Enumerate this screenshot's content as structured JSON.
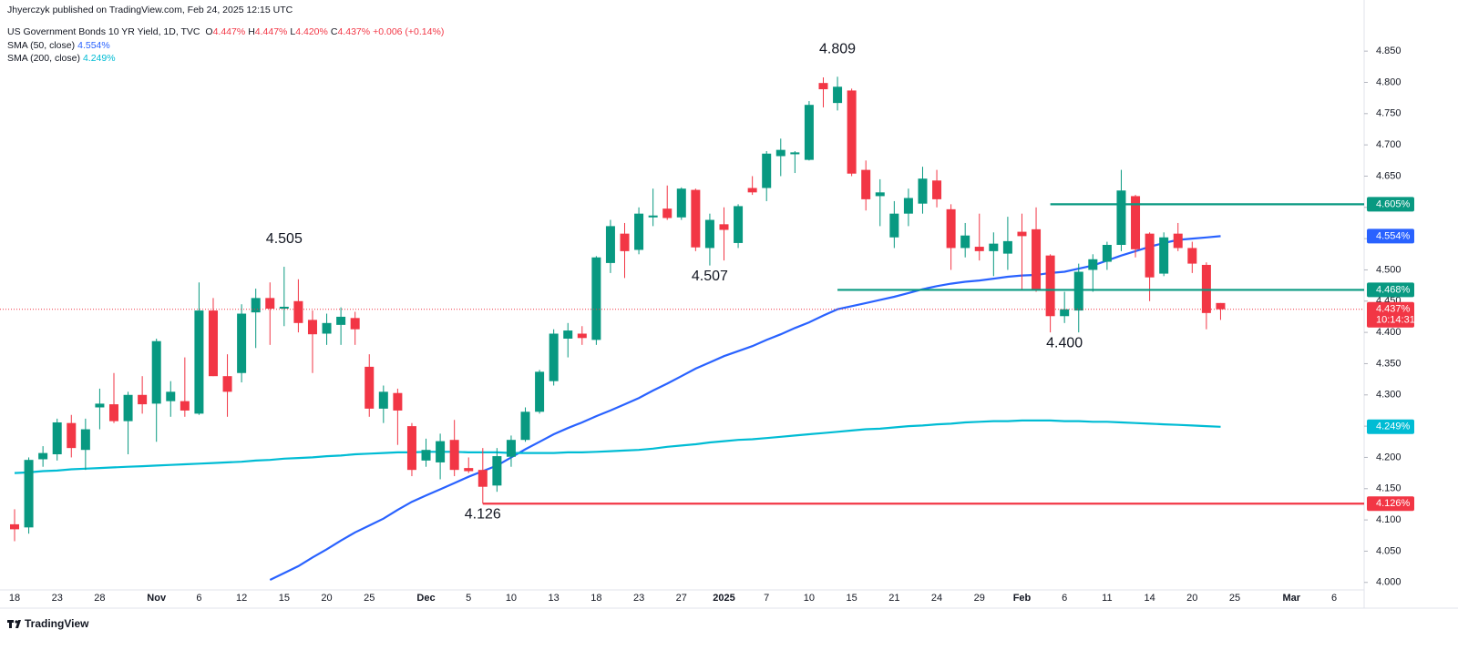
{
  "publisher_line": "Jhyerczyk published on TradingView.com, Feb 24, 2025 12:15 UTC",
  "brand": "TradingView",
  "chart_data": {
    "type": "candlestick",
    "title": "US Government Bonds 10 YR Yield, 1D, TVC",
    "ohlc_legend": [
      {
        "key": "O",
        "value": 4.447,
        "label": "4.447%"
      },
      {
        "key": "H",
        "value": 4.447,
        "label": "4.447%"
      },
      {
        "key": "L",
        "value": 4.42,
        "label": "4.420%"
      },
      {
        "key": "C",
        "value": 4.437,
        "label": "4.437%"
      }
    ],
    "change": {
      "value": 0.006,
      "label": "+0.006 (+0.14%)"
    },
    "up_color": "#089981",
    "down_color": "#f23645",
    "categories": [
      "18",
      null,
      null,
      "23",
      null,
      null,
      "28",
      null,
      null,
      null,
      "Nov",
      null,
      null,
      "6",
      null,
      null,
      "12",
      null,
      null,
      "15",
      null,
      null,
      "20",
      null,
      null,
      "25",
      null,
      null,
      null,
      "Dec",
      null,
      null,
      "5",
      null,
      null,
      "10",
      null,
      null,
      "13",
      null,
      null,
      "18",
      null,
      null,
      "23",
      null,
      null,
      "27",
      null,
      null,
      "2025",
      null,
      null,
      "7",
      null,
      null,
      "10",
      null,
      null,
      "15",
      null,
      null,
      "21",
      null,
      null,
      "24",
      null,
      null,
      "29",
      null,
      null,
      "Feb",
      null,
      null,
      "6",
      null,
      null,
      "11",
      null,
      null,
      "14",
      null,
      null,
      "20",
      null,
      null,
      "25",
      null,
      null,
      null,
      "Mar",
      null,
      null,
      "6"
    ],
    "open": [
      4.093,
      4.088,
      4.197,
      4.205,
      4.255,
      4.212,
      4.28,
      4.285,
      4.258,
      4.3,
      4.286,
      4.29,
      4.29,
      4.27,
      4.435,
      4.33,
      4.335,
      4.432,
      4.455,
      4.438,
      4.45,
      4.42,
      4.398,
      4.412,
      4.423,
      4.345,
      4.278,
      4.303,
      4.25,
      4.195,
      4.192,
      4.228,
      4.183,
      4.18,
      4.155,
      4.201,
      4.228,
      4.273,
      4.322,
      4.39,
      4.398,
      4.388,
      4.511,
      4.558,
      4.532,
      4.584,
      4.598,
      4.584,
      4.628,
      4.535,
      4.573,
      4.543,
      4.631,
      4.631,
      4.682,
      4.685,
      4.676,
      4.799,
      4.767,
      4.787,
      4.66,
      4.618,
      4.552,
      4.59,
      4.606,
      4.643,
      4.597,
      4.535,
      4.537,
      4.53,
      4.526,
      4.561,
      4.565,
      4.523,
      4.426,
      4.435,
      4.5,
      4.513,
      4.54,
      4.618,
      4.558,
      4.494,
      4.558,
      4.535,
      4.508,
      4.447,
      null,
      null,
      null,
      null,
      null,
      null,
      null,
      null
    ],
    "high": [
      4.117,
      4.2,
      4.218,
      4.262,
      4.268,
      4.262,
      4.31,
      4.335,
      4.305,
      4.33,
      4.39,
      4.322,
      4.36,
      4.48,
      4.455,
      4.365,
      4.445,
      4.47,
      4.48,
      4.505,
      4.485,
      4.435,
      4.43,
      4.44,
      4.433,
      4.365,
      4.315,
      4.31,
      4.255,
      4.23,
      4.238,
      4.26,
      4.2,
      4.215,
      4.215,
      4.235,
      4.28,
      4.34,
      4.405,
      4.415,
      4.41,
      4.522,
      4.58,
      4.575,
      4.6,
      4.63,
      4.635,
      4.632,
      4.63,
      4.59,
      4.6,
      4.605,
      4.65,
      4.69,
      4.71,
      4.69,
      4.77,
      4.808,
      4.809,
      4.79,
      4.675,
      4.645,
      4.61,
      4.63,
      4.665,
      4.66,
      4.605,
      4.575,
      4.59,
      4.56,
      4.585,
      4.59,
      4.6,
      4.525,
      4.465,
      4.51,
      4.525,
      4.545,
      4.66,
      4.62,
      4.56,
      4.56,
      4.575,
      4.545,
      4.512,
      4.447,
      null,
      null,
      null,
      null,
      null,
      null,
      null,
      null
    ],
    "low": [
      4.066,
      4.078,
      4.185,
      4.195,
      4.2,
      4.18,
      4.245,
      4.255,
      4.205,
      4.27,
      4.225,
      4.265,
      4.265,
      4.268,
      4.33,
      4.265,
      4.32,
      4.375,
      4.38,
      4.41,
      4.4,
      4.335,
      4.38,
      4.38,
      4.38,
      4.265,
      4.255,
      4.22,
      4.17,
      4.185,
      4.165,
      4.17,
      4.175,
      4.126,
      4.145,
      4.185,
      4.225,
      4.27,
      4.315,
      4.36,
      4.38,
      4.38,
      4.495,
      4.487,
      4.525,
      4.57,
      4.58,
      4.58,
      4.53,
      4.507,
      4.515,
      4.535,
      4.62,
      4.61,
      4.65,
      4.655,
      4.675,
      4.76,
      4.755,
      4.65,
      4.595,
      4.57,
      4.535,
      4.57,
      4.59,
      4.6,
      4.5,
      4.52,
      4.515,
      4.49,
      4.5,
      4.467,
      4.465,
      4.4,
      4.415,
      4.4,
      4.465,
      4.5,
      4.53,
      4.52,
      4.45,
      4.49,
      4.53,
      4.495,
      4.405,
      4.42,
      null,
      null,
      null,
      null,
      null,
      null,
      null,
      null
    ],
    "close": [
      4.085,
      4.196,
      4.207,
      4.256,
      4.215,
      4.245,
      4.286,
      4.258,
      4.3,
      4.285,
      4.386,
      4.305,
      4.275,
      4.435,
      4.33,
      4.305,
      4.43,
      4.455,
      4.438,
      4.441,
      4.415,
      4.397,
      4.415,
      4.425,
      4.405,
      4.278,
      4.305,
      4.275,
      4.18,
      4.212,
      4.226,
      4.18,
      4.178,
      4.153,
      4.202,
      4.228,
      4.273,
      4.337,
      4.398,
      4.403,
      4.391,
      4.52,
      4.57,
      4.53,
      4.59,
      4.587,
      4.583,
      4.63,
      4.536,
      4.58,
      4.564,
      4.602,
      4.624,
      4.686,
      4.692,
      4.688,
      4.764,
      4.789,
      4.793,
      4.654,
      4.613,
      4.624,
      4.59,
      4.615,
      4.646,
      4.613,
      4.535,
      4.555,
      4.53,
      4.542,
      4.546,
      4.554,
      4.467,
      4.426,
      4.437,
      4.497,
      4.517,
      4.54,
      4.627,
      4.533,
      4.488,
      4.552,
      4.535,
      4.51,
      4.431,
      4.437,
      null,
      null,
      null,
      null,
      null,
      null,
      null,
      null
    ],
    "series": [
      {
        "name": "SMA (50, close)",
        "color": "#2962ff",
        "value_label": "4.554%",
        "values": [
          null,
          null,
          null,
          null,
          null,
          null,
          null,
          null,
          null,
          null,
          null,
          null,
          null,
          null,
          null,
          null,
          null,
          null,
          4.004,
          4.015,
          4.026,
          4.04,
          4.053,
          4.067,
          4.08,
          4.091,
          4.102,
          4.116,
          4.129,
          4.139,
          4.149,
          4.159,
          4.169,
          4.178,
          4.187,
          4.2,
          4.213,
          4.225,
          4.237,
          4.247,
          4.256,
          4.266,
          4.275,
          4.285,
          4.295,
          4.307,
          4.318,
          4.33,
          4.342,
          4.352,
          4.362,
          4.37,
          4.378,
          4.388,
          4.397,
          4.407,
          4.416,
          4.427,
          4.437,
          4.442,
          4.447,
          4.452,
          4.457,
          4.463,
          4.469,
          4.474,
          4.478,
          4.481,
          4.483,
          4.486,
          4.489,
          4.491,
          4.492,
          4.495,
          4.497,
          4.502,
          4.507,
          4.515,
          4.523,
          4.53,
          4.537,
          4.543,
          4.548,
          4.55,
          4.552,
          4.554,
          null,
          null,
          null,
          null,
          null,
          null,
          null,
          null
        ]
      },
      {
        "name": "SMA (200, close)",
        "color": "#00bcd4",
        "value_label": "4.249%",
        "values": [
          4.175,
          4.176,
          4.178,
          4.179,
          4.181,
          4.182,
          4.183,
          4.184,
          4.185,
          4.186,
          4.187,
          4.188,
          4.189,
          4.19,
          4.191,
          4.192,
          4.193,
          4.195,
          4.196,
          4.198,
          4.199,
          4.2,
          4.202,
          4.203,
          4.205,
          4.206,
          4.207,
          4.208,
          4.208,
          4.209,
          4.209,
          4.209,
          4.208,
          4.208,
          4.208,
          4.207,
          4.207,
          4.207,
          4.207,
          4.208,
          4.208,
          4.209,
          4.21,
          4.211,
          4.212,
          4.214,
          4.217,
          4.219,
          4.221,
          4.224,
          4.226,
          4.228,
          4.229,
          4.231,
          4.233,
          4.235,
          4.237,
          4.239,
          4.241,
          4.243,
          4.245,
          4.246,
          4.248,
          4.25,
          4.251,
          4.253,
          4.254,
          4.256,
          4.257,
          4.258,
          4.258,
          4.259,
          4.259,
          4.259,
          4.258,
          4.258,
          4.257,
          4.257,
          4.256,
          4.255,
          4.254,
          4.253,
          4.252,
          4.251,
          4.25,
          4.249,
          null,
          null,
          null,
          null,
          null,
          null,
          null,
          null
        ]
      }
    ],
    "levels": [
      {
        "value": 4.605,
        "color": "#089981",
        "start": 73
      },
      {
        "value": 4.468,
        "color": "#089981",
        "start": 58
      },
      {
        "value": 4.126,
        "color": "#f23645",
        "start": 33
      }
    ],
    "axis_badges": [
      {
        "value": 4.605,
        "label": "4.605%",
        "color": "#089981"
      },
      {
        "value": 4.554,
        "label": "4.554%",
        "color": "#2962ff"
      },
      {
        "value": 4.468,
        "label": "4.468%",
        "color": "#089981"
      },
      {
        "value": 4.437,
        "label": "4.437%",
        "color": "#f23645",
        "countdown": "10:14:31"
      },
      {
        "value": 4.249,
        "label": "4.249%",
        "color": "#00bcd4"
      },
      {
        "value": 4.126,
        "label": "4.126%",
        "color": "#f23645"
      }
    ],
    "annotations": [
      {
        "label": "4.505",
        "index": 19,
        "value": 4.505,
        "position": "above"
      },
      {
        "label": "4.809",
        "index": 58,
        "value": 4.809,
        "position": "above"
      },
      {
        "label": "4.507",
        "index": 49,
        "value": 4.507,
        "position": "below"
      },
      {
        "label": "4.126",
        "index": 33,
        "value": 4.126,
        "position": "below"
      },
      {
        "label": "4.400",
        "index": 74,
        "value": 4.4,
        "position": "below"
      }
    ],
    "ylim": [
      3.988,
      4.891
    ],
    "yticks": [
      {
        "value": 4.0,
        "label": "4.000"
      },
      {
        "value": 4.05,
        "label": "4.050"
      },
      {
        "value": 4.1,
        "label": "4.100"
      },
      {
        "value": 4.15,
        "label": "4.150"
      },
      {
        "value": 4.2,
        "label": "4.200"
      },
      {
        "value": 4.25,
        "label": "4.250"
      },
      {
        "value": 4.3,
        "label": "4.300"
      },
      {
        "value": 4.35,
        "label": "4.350"
      },
      {
        "value": 4.4,
        "label": "4.400"
      },
      {
        "value": 4.45,
        "label": "4.450"
      },
      {
        "value": 4.5,
        "label": "4.500"
      },
      {
        "value": 4.55,
        "label": "4.550"
      },
      {
        "value": 4.6,
        "label": "4.600"
      },
      {
        "value": 4.65,
        "label": "4.650"
      },
      {
        "value": 4.7,
        "label": "4.700"
      },
      {
        "value": 4.75,
        "label": "4.750"
      },
      {
        "value": 4.8,
        "label": "4.800"
      },
      {
        "value": 4.85,
        "label": "4.850"
      }
    ],
    "grid": false
  }
}
